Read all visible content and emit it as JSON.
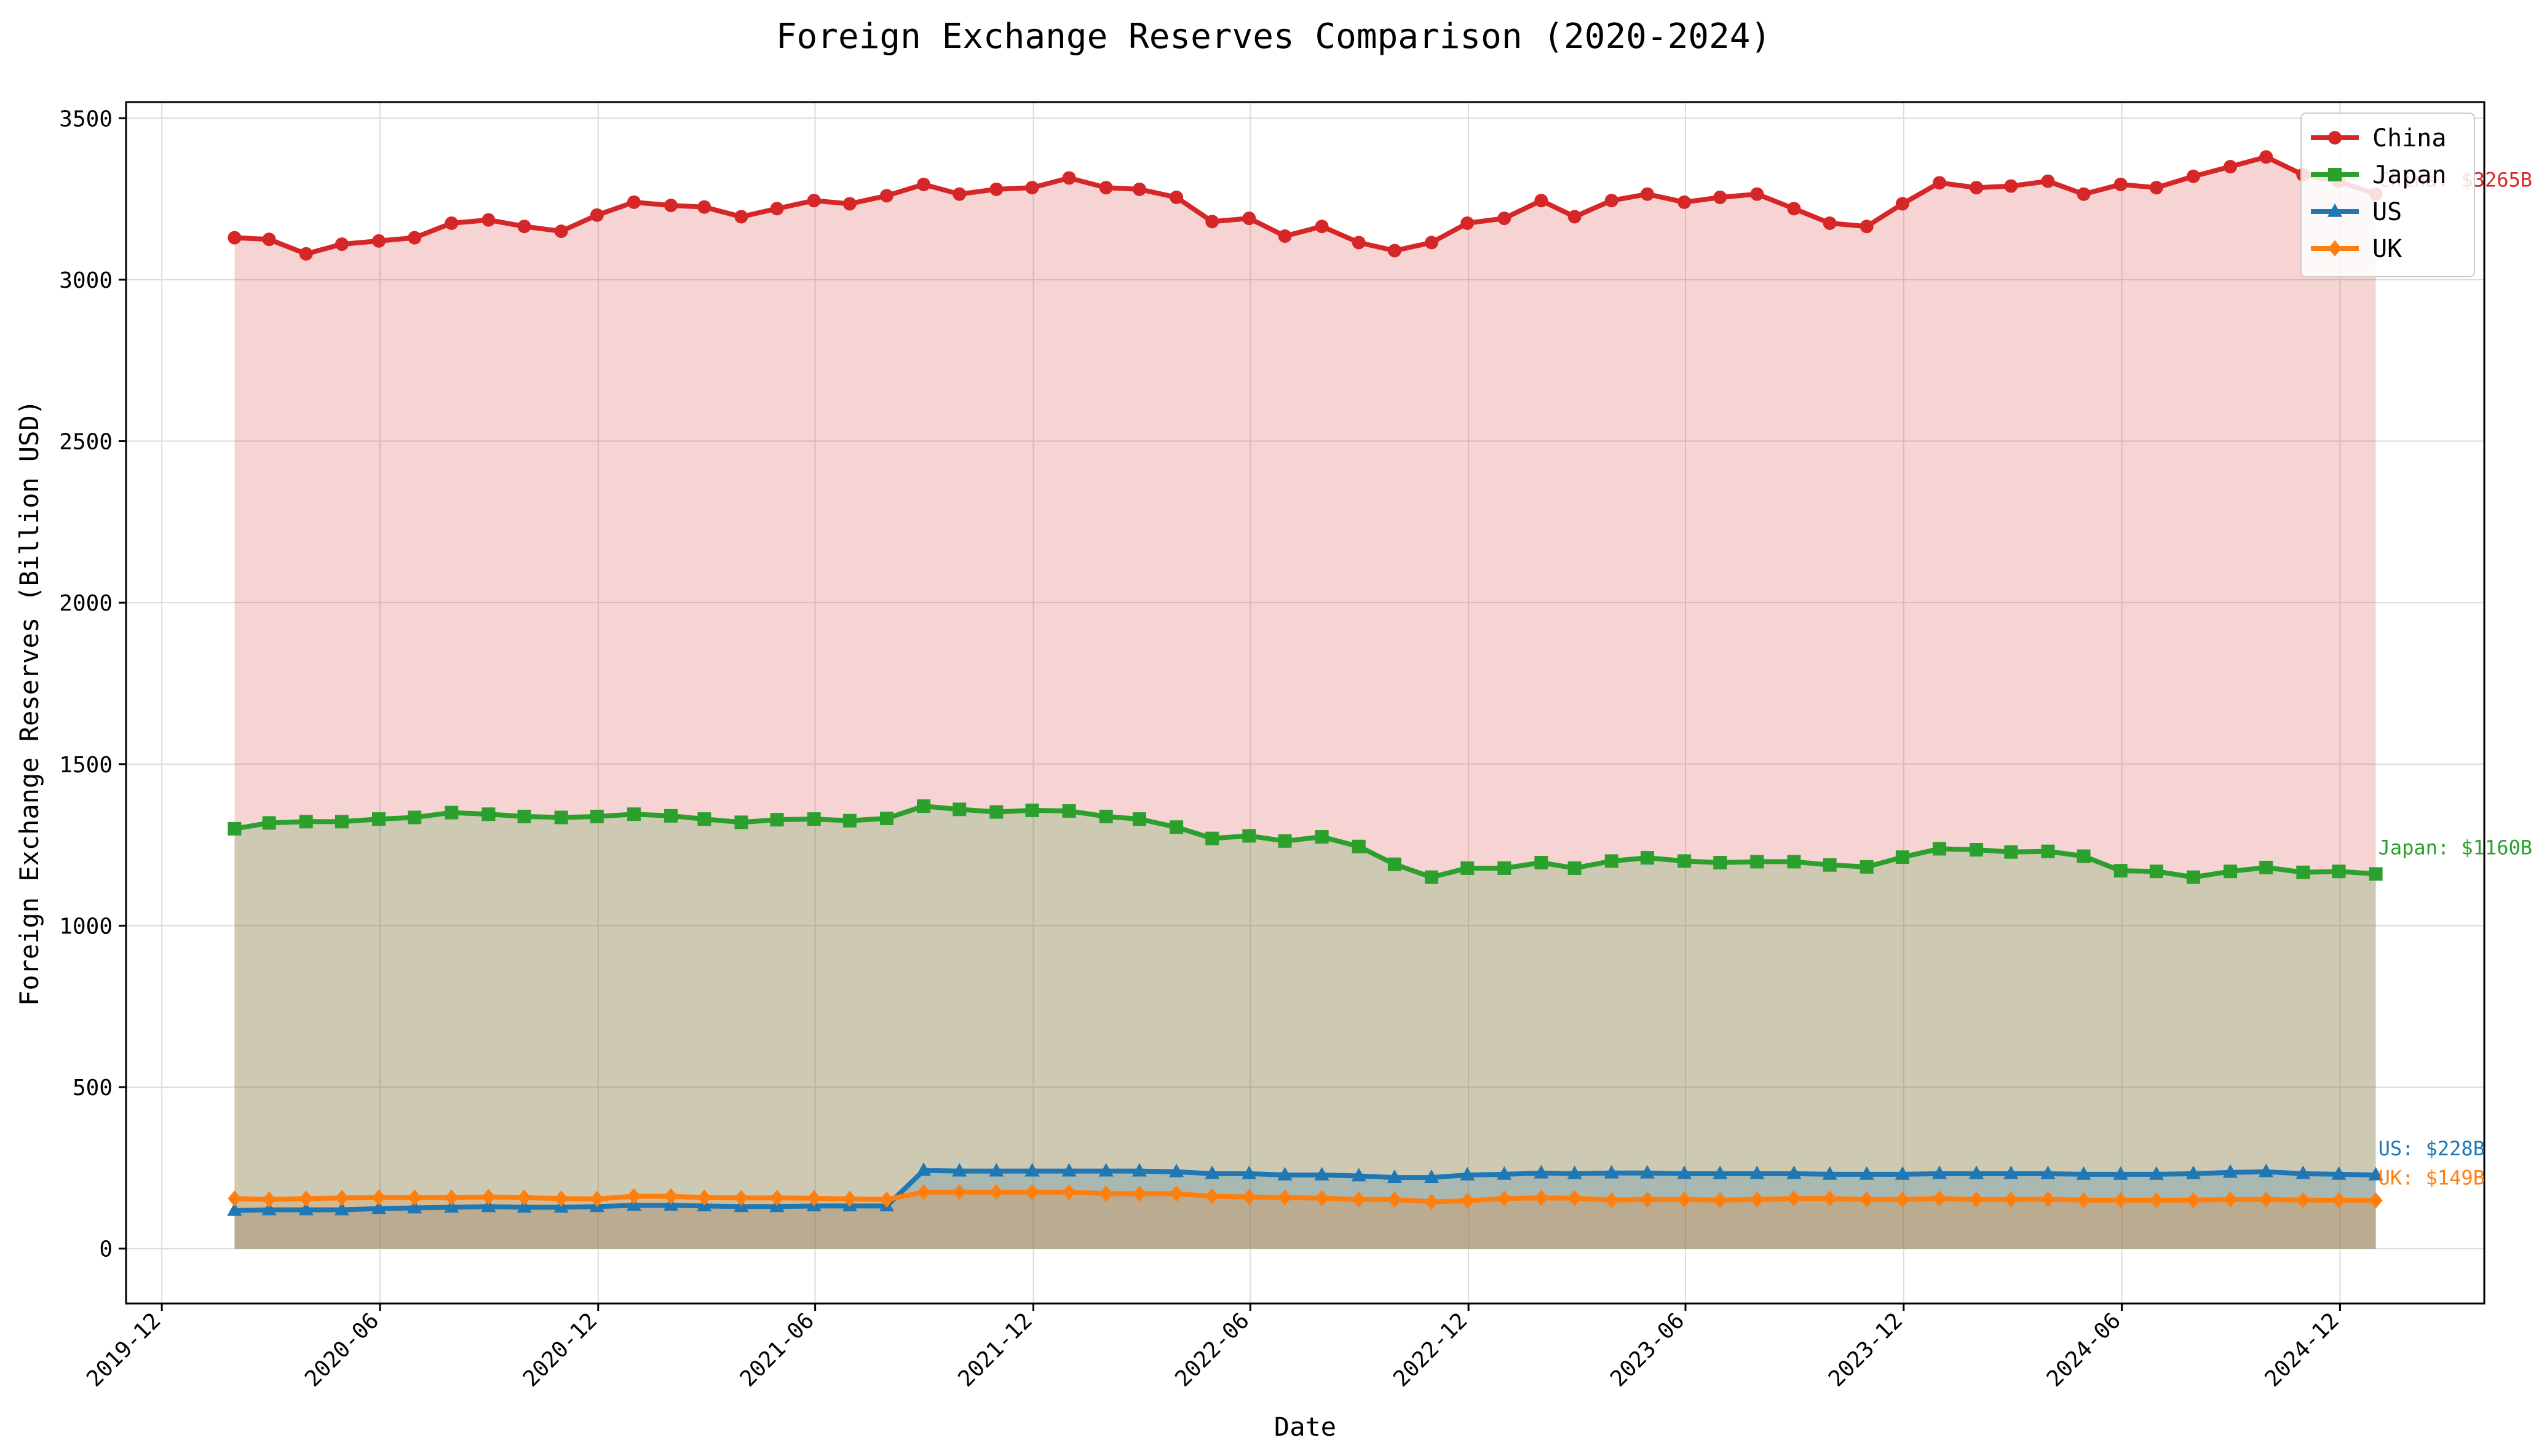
{
  "chart_data": {
    "type": "area",
    "title": "Foreign Exchange Reserves Comparison (2020-2024)",
    "xlabel": "Date",
    "ylabel": "Foreign Exchange Reserves (Billion USD)",
    "x_range": [
      "2019-11-01",
      "2025-04-01"
    ],
    "ylim": [
      -170,
      3550
    ],
    "y_ticks": [
      0,
      500,
      1000,
      1500,
      2000,
      2500,
      3000,
      3500
    ],
    "x_ticks": [
      {
        "date": "2019-12-01",
        "label": "2019-12"
      },
      {
        "date": "2020-06-01",
        "label": "2020-06"
      },
      {
        "date": "2020-12-01",
        "label": "2020-12"
      },
      {
        "date": "2021-06-01",
        "label": "2021-06"
      },
      {
        "date": "2021-12-01",
        "label": "2021-12"
      },
      {
        "date": "2022-06-01",
        "label": "2022-06"
      },
      {
        "date": "2022-12-01",
        "label": "2022-12"
      },
      {
        "date": "2023-06-01",
        "label": "2023-06"
      },
      {
        "date": "2023-12-01",
        "label": "2023-12"
      },
      {
        "date": "2024-06-01",
        "label": "2024-06"
      },
      {
        "date": "2024-12-01",
        "label": "2024-12"
      }
    ],
    "grid": true,
    "legend_position": "top-right",
    "x": [
      "2020-01-31",
      "2020-02-29",
      "2020-03-31",
      "2020-04-30",
      "2020-05-31",
      "2020-06-30",
      "2020-07-31",
      "2020-08-31",
      "2020-09-30",
      "2020-10-31",
      "2020-11-30",
      "2020-12-31",
      "2021-01-31",
      "2021-02-28",
      "2021-03-31",
      "2021-04-30",
      "2021-05-31",
      "2021-06-30",
      "2021-07-31",
      "2021-08-31",
      "2021-09-30",
      "2021-10-31",
      "2021-11-30",
      "2021-12-31",
      "2022-01-31",
      "2022-02-28",
      "2022-03-31",
      "2022-04-30",
      "2022-05-31",
      "2022-06-30",
      "2022-07-31",
      "2022-08-31",
      "2022-09-30",
      "2022-10-31",
      "2022-11-30",
      "2022-12-31",
      "2023-01-31",
      "2023-02-28",
      "2023-03-31",
      "2023-04-30",
      "2023-05-31",
      "2023-06-30",
      "2023-07-31",
      "2023-08-31",
      "2023-09-30",
      "2023-10-31",
      "2023-11-30",
      "2023-12-31",
      "2024-01-31",
      "2024-02-29",
      "2024-03-31",
      "2024-04-30",
      "2024-05-31",
      "2024-06-30",
      "2024-07-31",
      "2024-08-31",
      "2024-09-30",
      "2024-10-31",
      "2024-11-30",
      "2024-12-31"
    ],
    "series": [
      {
        "name": "China",
        "color": "#d62728",
        "marker": "circle",
        "values": [
          3130,
          3125,
          3080,
          3110,
          3120,
          3130,
          3175,
          3185,
          3165,
          3150,
          3200,
          3240,
          3230,
          3225,
          3195,
          3220,
          3245,
          3235,
          3260,
          3295,
          3265,
          3280,
          3285,
          3315,
          3285,
          3280,
          3255,
          3180,
          3190,
          3135,
          3165,
          3115,
          3090,
          3115,
          3175,
          3190,
          3245,
          3195,
          3245,
          3265,
          3240,
          3255,
          3265,
          3220,
          3175,
          3165,
          3235,
          3300,
          3285,
          3290,
          3305,
          3265,
          3295,
          3285,
          3320,
          3350,
          3380,
          3325,
          3305,
          3265
        ],
        "end_label": "China: $3265B"
      },
      {
        "name": "Japan",
        "color": "#2ca02c",
        "marker": "square",
        "values": [
          1300,
          1318,
          1322,
          1322,
          1330,
          1335,
          1350,
          1345,
          1338,
          1335,
          1338,
          1345,
          1340,
          1330,
          1320,
          1328,
          1330,
          1325,
          1332,
          1370,
          1360,
          1352,
          1357,
          1355,
          1338,
          1330,
          1305,
          1270,
          1278,
          1262,
          1275,
          1245,
          1190,
          1150,
          1178,
          1178,
          1195,
          1178,
          1200,
          1210,
          1200,
          1195,
          1198,
          1198,
          1188,
          1182,
          1212,
          1238,
          1235,
          1228,
          1230,
          1215,
          1170,
          1168,
          1150,
          1168,
          1180,
          1165,
          1168,
          1160
        ],
        "end_label": "Japan: $1160B"
      },
      {
        "name": "US",
        "color": "#1f77b4",
        "marker": "triangle",
        "values": [
          118,
          120,
          120,
          120,
          124,
          126,
          128,
          130,
          128,
          128,
          130,
          134,
          134,
          132,
          130,
          130,
          132,
          132,
          132,
          242,
          240,
          240,
          240,
          240,
          240,
          240,
          238,
          232,
          232,
          228,
          228,
          225,
          220,
          220,
          228,
          230,
          234,
          232,
          234,
          234,
          232,
          232,
          232,
          232,
          230,
          230,
          230,
          232,
          232,
          232,
          232,
          230,
          230,
          230,
          232,
          236,
          238,
          232,
          230,
          228
        ],
        "end_label": "US: $228B"
      },
      {
        "name": "UK",
        "color": "#ff7f0e",
        "marker": "diamond",
        "values": [
          155,
          152,
          155,
          157,
          158,
          158,
          158,
          160,
          158,
          155,
          154,
          162,
          162,
          158,
          157,
          157,
          156,
          154,
          152,
          175,
          175,
          175,
          175,
          175,
          170,
          170,
          170,
          162,
          160,
          158,
          156,
          152,
          152,
          145,
          148,
          155,
          157,
          156,
          150,
          152,
          152,
          150,
          152,
          155,
          155,
          152,
          152,
          155,
          152,
          152,
          153,
          150,
          150,
          150,
          150,
          152,
          152,
          150,
          150,
          149
        ],
        "end_label": "UK: $149B"
      }
    ]
  }
}
